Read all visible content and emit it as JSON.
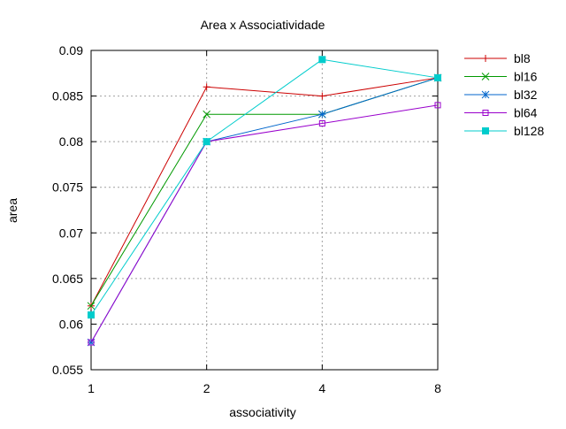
{
  "chart_data": {
    "type": "line",
    "title": "Area x Associatividade",
    "xlabel": "associativity",
    "ylabel": "area",
    "categories": [
      "1",
      "2",
      "4",
      "8"
    ],
    "ylim": [
      0.055,
      0.09
    ],
    "yticks": [
      0.055,
      0.06,
      0.065,
      0.07,
      0.075,
      0.08,
      0.085,
      0.09
    ],
    "ytick_labels": [
      "0.055",
      "0.06",
      "0.065",
      "0.07",
      "0.075",
      "0.08",
      "0.085",
      "0.09"
    ],
    "grid": true,
    "legend_position": "outside-right-top",
    "series": [
      {
        "name": "bl8",
        "values": [
          0.062,
          0.086,
          0.085,
          0.087
        ],
        "color": "#cc0000",
        "marker": "plus"
      },
      {
        "name": "bl16",
        "values": [
          0.062,
          0.083,
          0.083,
          0.087
        ],
        "color": "#009900",
        "marker": "cross"
      },
      {
        "name": "bl32",
        "values": [
          0.058,
          0.08,
          0.083,
          0.087
        ],
        "color": "#0066cc",
        "marker": "star"
      },
      {
        "name": "bl64",
        "values": [
          0.058,
          0.08,
          0.082,
          0.084
        ],
        "color": "#9900cc",
        "marker": "open-square"
      },
      {
        "name": "bl128",
        "values": [
          0.061,
          0.08,
          0.089,
          0.087
        ],
        "color": "#00cccc",
        "marker": "filled-square"
      }
    ]
  }
}
